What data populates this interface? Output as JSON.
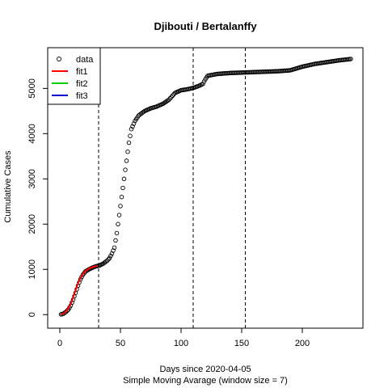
{
  "chart_data": {
    "type": "scatter",
    "title": "Djibouti / Bertalanffy",
    "xlabel": "Days since 2020-04-05",
    "xlabel2": "Simple Moving Avarage (window size = 7)",
    "ylabel": "Cumulative Cases",
    "xlim": [
      -10,
      250
    ],
    "ylim": [
      -300,
      5900
    ],
    "xticks": [
      0,
      50,
      100,
      150,
      200
    ],
    "yticks": [
      0,
      1000,
      2000,
      3000,
      4000,
      5000
    ],
    "vlines": [
      32,
      110,
      153
    ],
    "legend": {
      "position": "top-left",
      "entries": [
        {
          "label": "data",
          "kind": "point",
          "color": "#000000"
        },
        {
          "label": "fit1",
          "kind": "line",
          "color": "#ff0000"
        },
        {
          "label": "fit2",
          "kind": "line",
          "color": "#00cc00"
        },
        {
          "label": "fit3",
          "kind": "line",
          "color": "#0000cc"
        }
      ]
    },
    "series": [
      {
        "name": "data",
        "anchors": [
          [
            1,
            5
          ],
          [
            3,
            20
          ],
          [
            5,
            60
          ],
          [
            7,
            110
          ],
          [
            9,
            200
          ],
          [
            11,
            330
          ],
          [
            13,
            480
          ],
          [
            15,
            640
          ],
          [
            17,
            780
          ],
          [
            19,
            880
          ],
          [
            21,
            950
          ],
          [
            24,
            1000
          ],
          [
            27,
            1040
          ],
          [
            30,
            1070
          ],
          [
            33,
            1090
          ],
          [
            36,
            1130
          ],
          [
            39,
            1190
          ],
          [
            41,
            1250
          ],
          [
            43,
            1350
          ],
          [
            45,
            1480
          ],
          [
            47,
            1800
          ],
          [
            49,
            2200
          ],
          [
            51,
            2600
          ],
          [
            53,
            3000
          ],
          [
            55,
            3400
          ],
          [
            57,
            3800
          ],
          [
            59,
            4100
          ],
          [
            62,
            4280
          ],
          [
            65,
            4400
          ],
          [
            70,
            4500
          ],
          [
            75,
            4560
          ],
          [
            80,
            4600
          ],
          [
            85,
            4660
          ],
          [
            90,
            4750
          ],
          [
            95,
            4900
          ],
          [
            100,
            4960
          ],
          [
            105,
            4980
          ],
          [
            110,
            5010
          ],
          [
            115,
            5060
          ],
          [
            118,
            5100
          ],
          [
            120,
            5200
          ],
          [
            122,
            5280
          ],
          [
            126,
            5300
          ],
          [
            130,
            5320
          ],
          [
            140,
            5340
          ],
          [
            150,
            5350
          ],
          [
            160,
            5360
          ],
          [
            180,
            5380
          ],
          [
            190,
            5400
          ],
          [
            200,
            5480
          ],
          [
            210,
            5540
          ],
          [
            220,
            5580
          ],
          [
            230,
            5620
          ],
          [
            240,
            5650
          ]
        ]
      },
      {
        "name": "fit1",
        "color": "#ff0000",
        "points": [
          [
            1,
            5
          ],
          [
            3,
            25
          ],
          [
            5,
            70
          ],
          [
            7,
            140
          ],
          [
            9,
            240
          ],
          [
            11,
            380
          ],
          [
            13,
            540
          ],
          [
            15,
            690
          ],
          [
            17,
            810
          ],
          [
            19,
            900
          ],
          [
            21,
            960
          ],
          [
            23,
            1000
          ],
          [
            25,
            1030
          ],
          [
            28,
            1060
          ],
          [
            31,
            1080
          ]
        ]
      }
    ]
  }
}
